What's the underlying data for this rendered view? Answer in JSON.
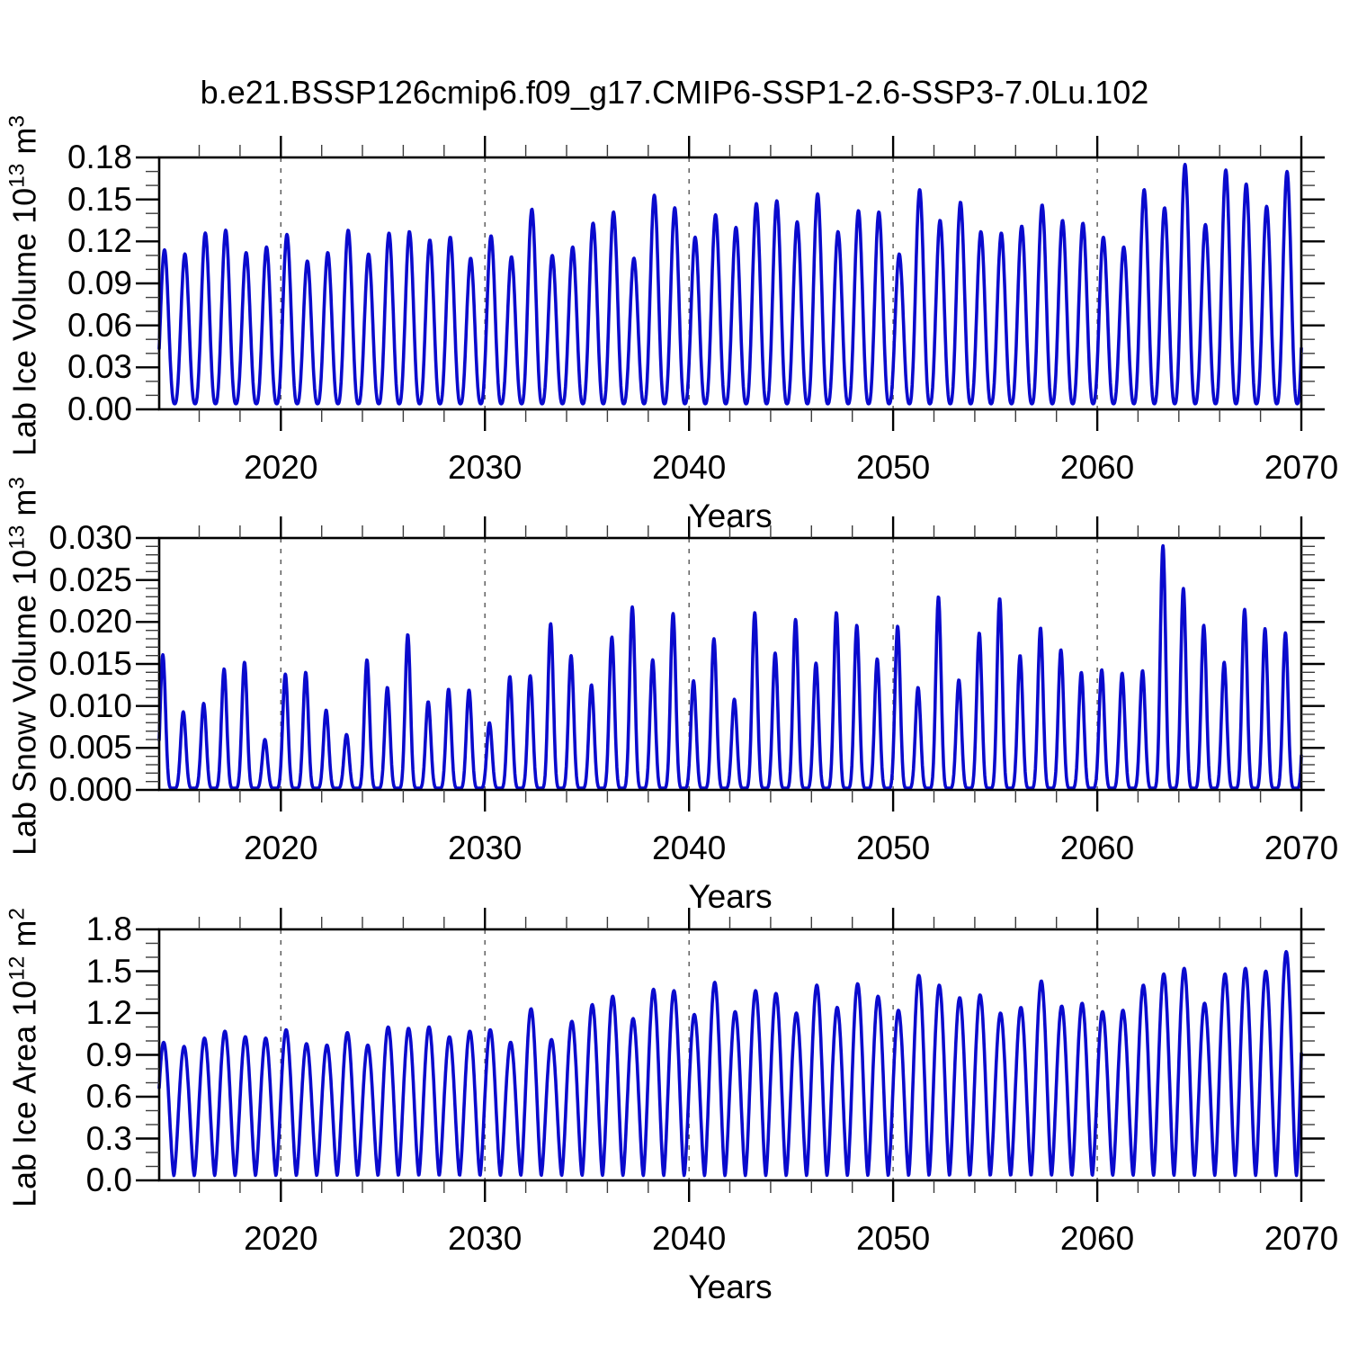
{
  "title": "b.e21.BSSP126cmip6.f09_g17.CMIP6-SSP1-2.6-SSP3-7.0Lu.102",
  "style": {
    "line_color": "#0a0acd",
    "frame_color": "#000000",
    "grid_color": "#555555",
    "background": "#ffffff"
  },
  "x_axis": {
    "label": "Years",
    "min": 2014.04,
    "max": 2070,
    "major_tick_values": [
      2020,
      2030,
      2040,
      2050,
      2060,
      2070
    ],
    "major_tick_labels": [
      "2020",
      "2030",
      "2040",
      "2050",
      "2060",
      "2070"
    ],
    "minor_tick_step_years": 2,
    "gridline_values": [
      2020,
      2030,
      2040,
      2050,
      2060
    ]
  },
  "years": [
    2014,
    2015,
    2016,
    2017,
    2018,
    2019,
    2020,
    2021,
    2022,
    2023,
    2024,
    2025,
    2026,
    2027,
    2028,
    2029,
    2030,
    2031,
    2032,
    2033,
    2034,
    2035,
    2036,
    2037,
    2038,
    2039,
    2040,
    2041,
    2042,
    2043,
    2044,
    2045,
    2046,
    2047,
    2048,
    2049,
    2050,
    2051,
    2052,
    2053,
    2054,
    2055,
    2056,
    2057,
    2058,
    2059,
    2060,
    2061,
    2062,
    2063,
    2064,
    2065,
    2066,
    2067,
    2068,
    2069
  ],
  "chart_data": [
    {
      "type": "line",
      "id": "lab-ice-volume",
      "name": "Lab Ice Volume",
      "units": "10^13 m^3",
      "ylabel": "Lab Ice Volume 10^13 m^3",
      "ylabel_parts": [
        {
          "text": "Lab Ice Volume 10"
        },
        {
          "text": "13",
          "sup": true
        },
        {
          "text": " m"
        },
        {
          "text": "3",
          "sup": true
        }
      ],
      "xlabel": "Years",
      "ylim": [
        0,
        0.18
      ],
      "ytick_values": [
        0.0,
        0.03,
        0.06,
        0.09,
        0.12,
        0.15,
        0.18
      ],
      "ytick_labels": [
        "0.00",
        "0.03",
        "0.06",
        "0.09",
        "0.12",
        "0.15",
        "0.18"
      ],
      "y_minor_step": 0.01,
      "grid": "vertical-dashed-decades",
      "seasonal_cycle": {
        "peak_phase": 0.3,
        "sharpness": 1.35,
        "annual_min": 0.004
      },
      "annual_max": [
        0.114,
        0.111,
        0.126,
        0.128,
        0.112,
        0.116,
        0.125,
        0.106,
        0.112,
        0.128,
        0.111,
        0.126,
        0.127,
        0.121,
        0.123,
        0.108,
        0.124,
        0.109,
        0.143,
        0.11,
        0.116,
        0.133,
        0.141,
        0.108,
        0.153,
        0.144,
        0.123,
        0.139,
        0.13,
        0.147,
        0.149,
        0.134,
        0.154,
        0.127,
        0.142,
        0.141,
        0.111,
        0.157,
        0.135,
        0.148,
        0.127,
        0.126,
        0.131,
        0.146,
        0.135,
        0.133,
        0.123,
        0.116,
        0.157,
        0.144,
        0.175,
        0.132,
        0.171,
        0.161,
        0.145,
        0.17
      ]
    },
    {
      "type": "line",
      "id": "lab-snow-volume",
      "name": "Lab Snow Volume",
      "units": "10^13 m^3",
      "ylabel": "Lab Snow Volume 10^13 m^3",
      "ylabel_parts": [
        {
          "text": "Lab Snow Volume 10"
        },
        {
          "text": "13",
          "sup": true
        },
        {
          "text": " m"
        },
        {
          "text": "3",
          "sup": true
        }
      ],
      "xlabel": "Years",
      "ylim": [
        0,
        0.03
      ],
      "ytick_values": [
        0.0,
        0.005,
        0.01,
        0.015,
        0.02,
        0.025,
        0.03
      ],
      "ytick_labels": [
        "0.000",
        "0.005",
        "0.010",
        "0.015",
        "0.020",
        "0.025",
        "0.030"
      ],
      "y_minor_step": 0.001,
      "grid": "vertical-dashed-decades",
      "seasonal_cycle": {
        "peak_phase": 0.22,
        "sharpness": 3.0,
        "annual_min": 0.0002
      },
      "annual_max": [
        0.0161,
        0.0093,
        0.0103,
        0.0144,
        0.0152,
        0.006,
        0.0138,
        0.014,
        0.0095,
        0.0066,
        0.0155,
        0.0122,
        0.0185,
        0.0105,
        0.012,
        0.0119,
        0.008,
        0.0135,
        0.0136,
        0.0198,
        0.016,
        0.0125,
        0.0182,
        0.0218,
        0.0155,
        0.021,
        0.013,
        0.018,
        0.0108,
        0.0211,
        0.0163,
        0.0203,
        0.0151,
        0.0211,
        0.0196,
        0.0156,
        0.0195,
        0.0122,
        0.023,
        0.0131,
        0.0187,
        0.0228,
        0.016,
        0.0193,
        0.0167,
        0.014,
        0.0143,
        0.0139,
        0.0142,
        0.0291,
        0.024,
        0.0196,
        0.0152,
        0.0215,
        0.0192,
        0.0187
      ]
    },
    {
      "type": "line",
      "id": "lab-ice-area",
      "name": "Lab Ice Area",
      "units": "10^12 m^2",
      "ylabel": "Lab Ice Area 10^12 m^2",
      "ylabel_parts": [
        {
          "text": "Lab Ice Area 10"
        },
        {
          "text": "12",
          "sup": true
        },
        {
          "text": " m"
        },
        {
          "text": "2",
          "sup": true
        }
      ],
      "xlabel": "Years",
      "ylim": [
        0,
        1.8
      ],
      "ytick_values": [
        0.0,
        0.3,
        0.6,
        0.9,
        1.2,
        1.5,
        1.8
      ],
      "ytick_labels": [
        "0.0",
        "0.3",
        "0.6",
        "0.9",
        "1.2",
        "1.5",
        "1.8"
      ],
      "y_minor_step": 0.1,
      "grid": "vertical-dashed-decades",
      "seasonal_cycle": {
        "peak_phase": 0.26,
        "sharpness": 0.8,
        "annual_min": 0.035
      },
      "annual_max": [
        0.99,
        0.96,
        1.02,
        1.07,
        1.03,
        1.02,
        1.08,
        0.98,
        0.97,
        1.06,
        0.97,
        1.1,
        1.09,
        1.1,
        1.03,
        1.07,
        1.08,
        0.99,
        1.23,
        1.01,
        1.14,
        1.26,
        1.32,
        1.16,
        1.37,
        1.36,
        1.19,
        1.42,
        1.21,
        1.36,
        1.34,
        1.2,
        1.4,
        1.24,
        1.41,
        1.32,
        1.22,
        1.47,
        1.4,
        1.31,
        1.33,
        1.2,
        1.24,
        1.43,
        1.25,
        1.27,
        1.21,
        1.22,
        1.4,
        1.48,
        1.52,
        1.27,
        1.48,
        1.52,
        1.5,
        1.64
      ]
    }
  ]
}
